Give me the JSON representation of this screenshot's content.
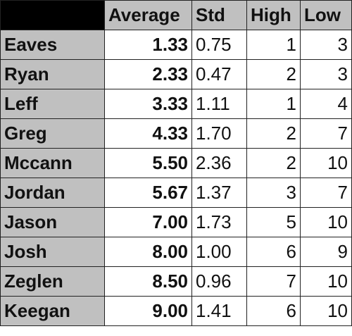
{
  "table": {
    "headers": [
      "",
      "Average",
      "Std",
      "High",
      "Low"
    ],
    "rows": [
      {
        "name": "Eaves",
        "average": "1.33",
        "std": "0.75",
        "high": "1",
        "low": "3"
      },
      {
        "name": "Ryan",
        "average": "2.33",
        "std": "0.47",
        "high": "2",
        "low": "3"
      },
      {
        "name": "Leff",
        "average": "3.33",
        "std": "1.11",
        "high": "1",
        "low": "4"
      },
      {
        "name": "Greg",
        "average": "4.33",
        "std": "1.70",
        "high": "2",
        "low": "7"
      },
      {
        "name": "Mccann",
        "average": "5.50",
        "std": "2.36",
        "high": "2",
        "low": "10"
      },
      {
        "name": "Jordan",
        "average": "5.67",
        "std": "1.37",
        "high": "3",
        "low": "7"
      },
      {
        "name": "Jason",
        "average": "7.00",
        "std": "1.73",
        "high": "5",
        "low": "10"
      },
      {
        "name": "Josh",
        "average": "8.00",
        "std": "1.00",
        "high": "6",
        "low": "9"
      },
      {
        "name": "Zeglen",
        "average": "8.50",
        "std": "0.96",
        "high": "7",
        "low": "10"
      },
      {
        "name": "Keegan",
        "average": "9.00",
        "std": "1.41",
        "high": "6",
        "low": "10"
      }
    ]
  },
  "colors": {
    "header_bg": "#c0c0c0",
    "corner_bg": "#000000",
    "cell_bg": "#ffffff",
    "border": "#222222"
  }
}
